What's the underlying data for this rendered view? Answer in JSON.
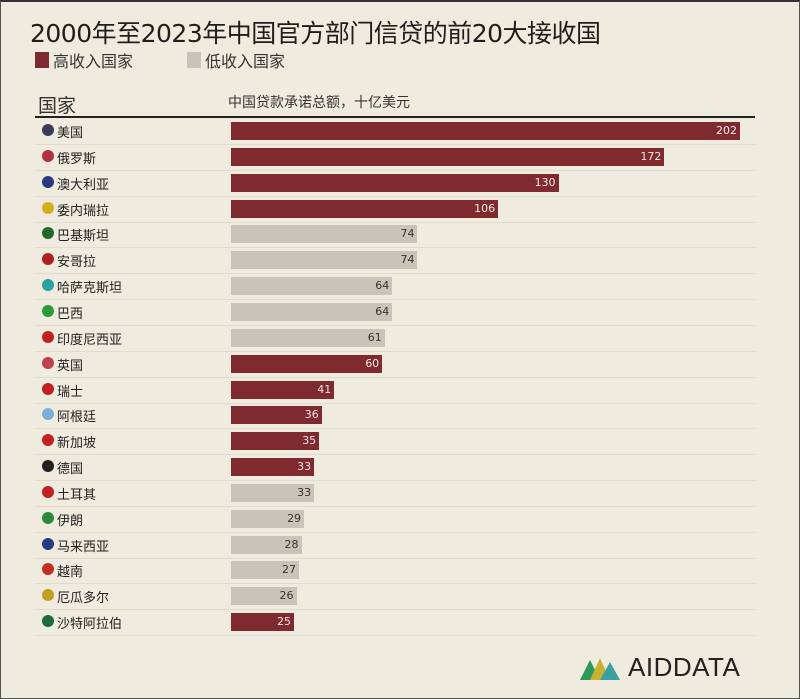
{
  "chart_data": {
    "type": "bar",
    "orientation": "horizontal",
    "title": "2000年至2023年中国官方部门信贷的前20大接收国",
    "legend": [
      {
        "name": "高收入国家",
        "color": "#7f2a2e"
      },
      {
        "name": "低收入国家",
        "color": "#c8c4b9"
      }
    ],
    "legend_placement": "top-left",
    "category_header": "国家",
    "value_header": "中国贷款承诺总额，十亿美元",
    "xlim": [
      0,
      202
    ],
    "grid": false,
    "categories": [
      "美国",
      "俄罗斯",
      "澳大利亚",
      "委内瑞拉",
      "巴基斯坦",
      "安哥拉",
      "哈萨克斯坦",
      "巴西",
      "印度尼西亚",
      "英国",
      "瑞士",
      "阿根廷",
      "新加坡",
      "德国",
      "土耳其",
      "伊朗",
      "马来西亚",
      "越南",
      "厄瓜多尔",
      "沙特阿拉伯"
    ],
    "values": [
      202,
      172,
      130,
      106,
      74,
      74,
      64,
      64,
      61,
      60,
      41,
      36,
      35,
      33,
      33,
      29,
      28,
      27,
      26,
      25
    ],
    "income_group": [
      "high",
      "high",
      "high",
      "high",
      "low",
      "low",
      "low",
      "low",
      "low",
      "high",
      "high",
      "high",
      "high",
      "high",
      "low",
      "low",
      "low",
      "low",
      "low",
      "high"
    ],
    "flag_colors": [
      "#3a3a5a",
      "#b03040",
      "#2a3a80",
      "#d0b020",
      "#1f6a2a",
      "#b02020",
      "#2aa0a0",
      "#2a9a3a",
      "#c02020",
      "#c04050",
      "#c02020",
      "#7ab0d8",
      "#c02020",
      "#222222",
      "#c02020",
      "#2a8a3a",
      "#2a3a80",
      "#c03020",
      "#c0a020",
      "#1f6a3a"
    ]
  },
  "colors": {
    "high": "#7f2a2e",
    "low": "#c8c4b9",
    "background": "#efebdf"
  },
  "logo": {
    "text": "AIDDATA"
  }
}
